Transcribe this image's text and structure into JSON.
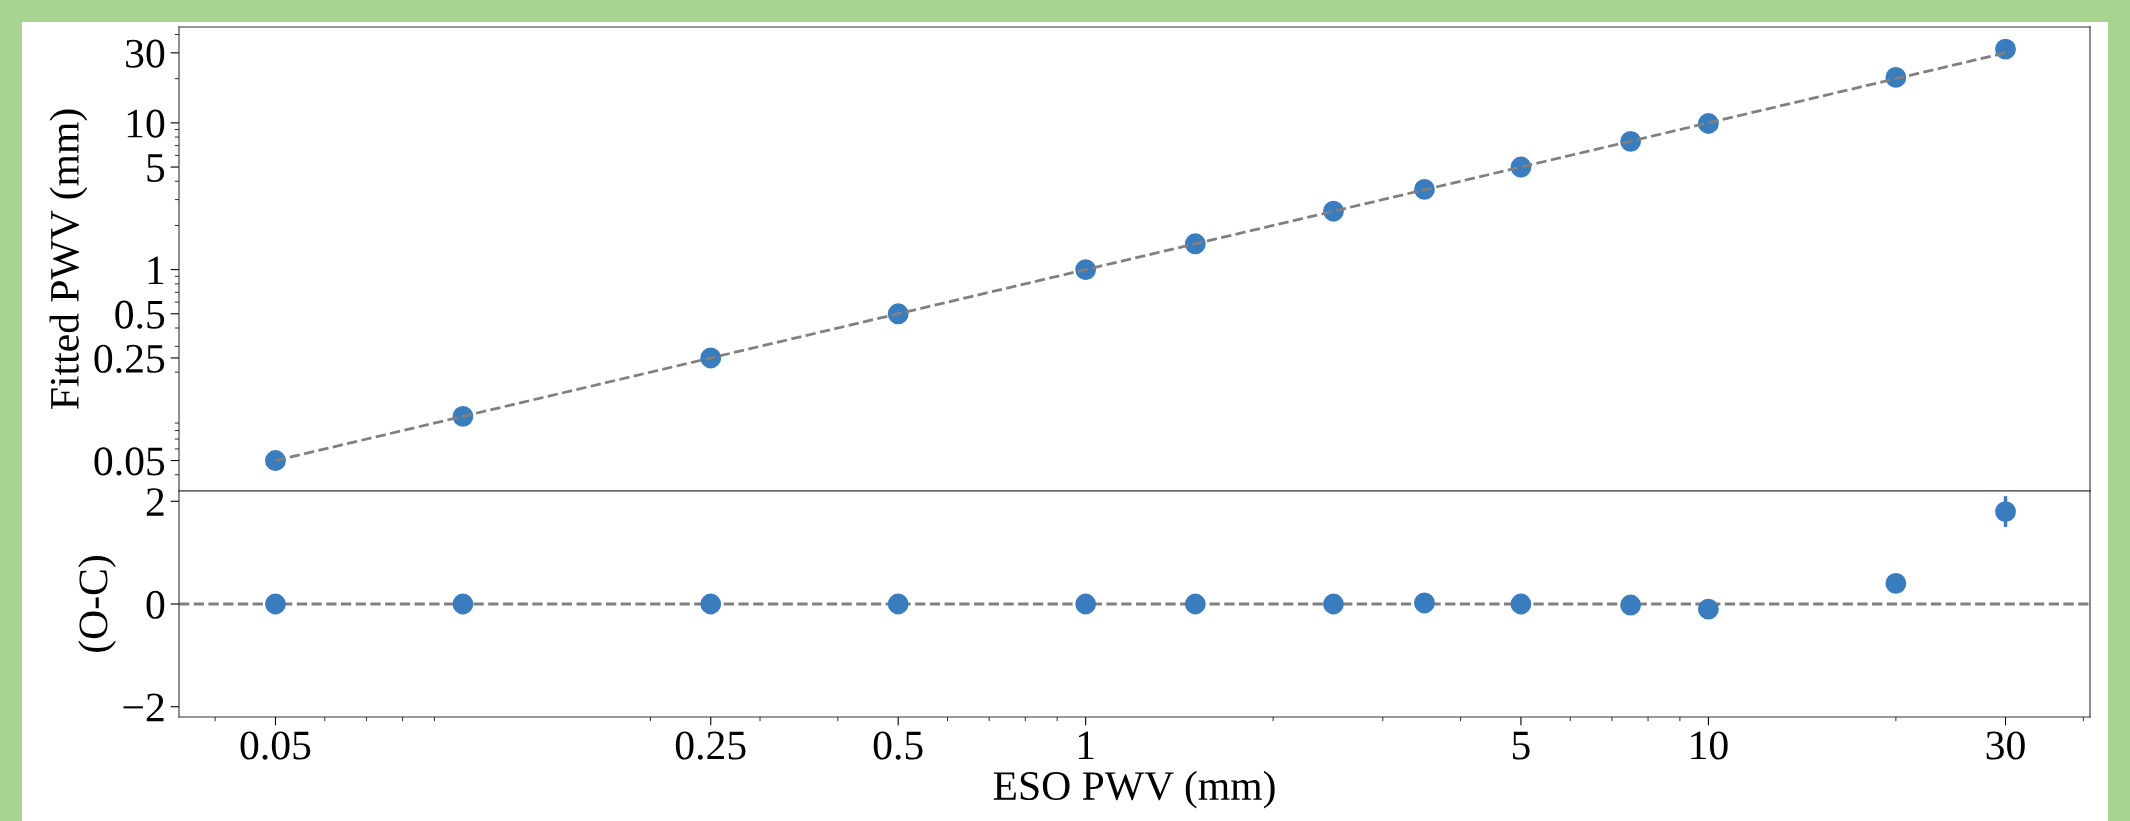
{
  "chart_data": [
    {
      "type": "scatter",
      "ylabel": "Fitted PWV (mm)",
      "log": "xy",
      "xlim": [
        0.035,
        41
      ],
      "ylim": [
        0.031,
        45
      ],
      "xticks": [
        0.05,
        0.25,
        0.5,
        1,
        5,
        10,
        30
      ],
      "yticks": [
        0.05,
        0.25,
        0.5,
        1,
        5,
        10,
        30
      ],
      "tick_labels": "y",
      "grid": false,
      "legend": false,
      "series": [
        {
          "type": "line",
          "color": "#808080",
          "line_style": "dashed",
          "x": [
            0.05,
            30
          ],
          "values": [
            0.05,
            30
          ]
        },
        {
          "color": "#3a7dbf",
          "marker": "circle",
          "x": [
            0.05,
            0.1,
            0.25,
            0.5,
            1,
            1.5,
            2.5,
            3.5,
            5,
            7.5,
            10,
            20,
            30
          ],
          "values": [
            0.05,
            0.1,
            0.25,
            0.5,
            1,
            1.5,
            2.5,
            3.52,
            5,
            7.48,
            9.9,
            20.4,
            31.8
          ]
        }
      ]
    },
    {
      "type": "scatter",
      "xlabel": "ESO PWV (mm)",
      "ylabel": "(O-C)",
      "log": "x",
      "xlim": [
        0.035,
        41
      ],
      "ylim": [
        -2.2,
        2.2
      ],
      "xticks": [
        0.05,
        0.25,
        0.5,
        1,
        5,
        10,
        30
      ],
      "yticks": [
        {
          "value": -2,
          "label": "−2"
        },
        0,
        2
      ],
      "grid": false,
      "legend": false,
      "ref_lines": [
        {
          "axis": "y",
          "value": 0,
          "color": "#808080",
          "line_style": "dashed"
        }
      ],
      "series": [
        {
          "color": "#3a7dbf",
          "marker": "circle",
          "x": [
            0.05,
            0.1,
            0.25,
            0.5,
            1,
            1.5,
            2.5,
            3.5,
            5,
            7.5,
            10,
            20,
            30
          ],
          "values": [
            0,
            0,
            0,
            0,
            0,
            0,
            0,
            0.02,
            0,
            -0.02,
            -0.1,
            0.4,
            1.8
          ],
          "errors": [
            null,
            null,
            null,
            null,
            null,
            null,
            null,
            null,
            null,
            null,
            null,
            0.15,
            0.3
          ]
        }
      ]
    }
  ]
}
